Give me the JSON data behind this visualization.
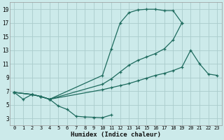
{
  "bg_color": "#cceaea",
  "grid_color": "#aacccc",
  "line_color": "#1e6b5e",
  "xlabel": "Humidex (Indice chaleur)",
  "xlim": [
    -0.5,
    23.5
  ],
  "ylim": [
    2.0,
    20.0
  ],
  "xticks": [
    0,
    1,
    2,
    3,
    4,
    5,
    6,
    7,
    8,
    9,
    10,
    11,
    12,
    13,
    14,
    15,
    16,
    17,
    18,
    19,
    20,
    21,
    22,
    23
  ],
  "yticks": [
    3,
    5,
    7,
    9,
    11,
    13,
    15,
    17,
    19
  ],
  "curves": [
    {
      "x": [
        0,
        1,
        2,
        3,
        4,
        5,
        6,
        7,
        8,
        9,
        10,
        11
      ],
      "y": [
        6.8,
        5.8,
        6.5,
        6.2,
        5.8,
        4.8,
        4.3,
        3.3,
        3.2,
        3.15,
        3.1,
        3.5
      ]
    },
    {
      "x": [
        0,
        2,
        3,
        4,
        10,
        11,
        12,
        13,
        14,
        15,
        16,
        17,
        18,
        19
      ],
      "y": [
        6.8,
        6.5,
        6.2,
        5.8,
        9.3,
        13.2,
        17.0,
        18.5,
        18.9,
        19.0,
        19.0,
        18.8,
        18.8,
        17.0
      ]
    },
    {
      "x": [
        0,
        2,
        3,
        4,
        10,
        11,
        12,
        13,
        14,
        15,
        16,
        17,
        18,
        19
      ],
      "y": [
        6.8,
        6.5,
        6.2,
        5.8,
        8.0,
        8.8,
        9.8,
        10.8,
        11.5,
        12.0,
        12.5,
        13.2,
        14.5,
        17.0
      ]
    },
    {
      "x": [
        0,
        2,
        3,
        4,
        10,
        11,
        12,
        13,
        14,
        15,
        16,
        17,
        18,
        19,
        20,
        21,
        22,
        23
      ],
      "y": [
        6.8,
        6.5,
        6.2,
        5.8,
        7.2,
        7.5,
        7.8,
        8.1,
        8.5,
        8.9,
        9.3,
        9.6,
        10.0,
        10.5,
        13.0,
        11.0,
        9.5,
        9.3
      ]
    }
  ]
}
